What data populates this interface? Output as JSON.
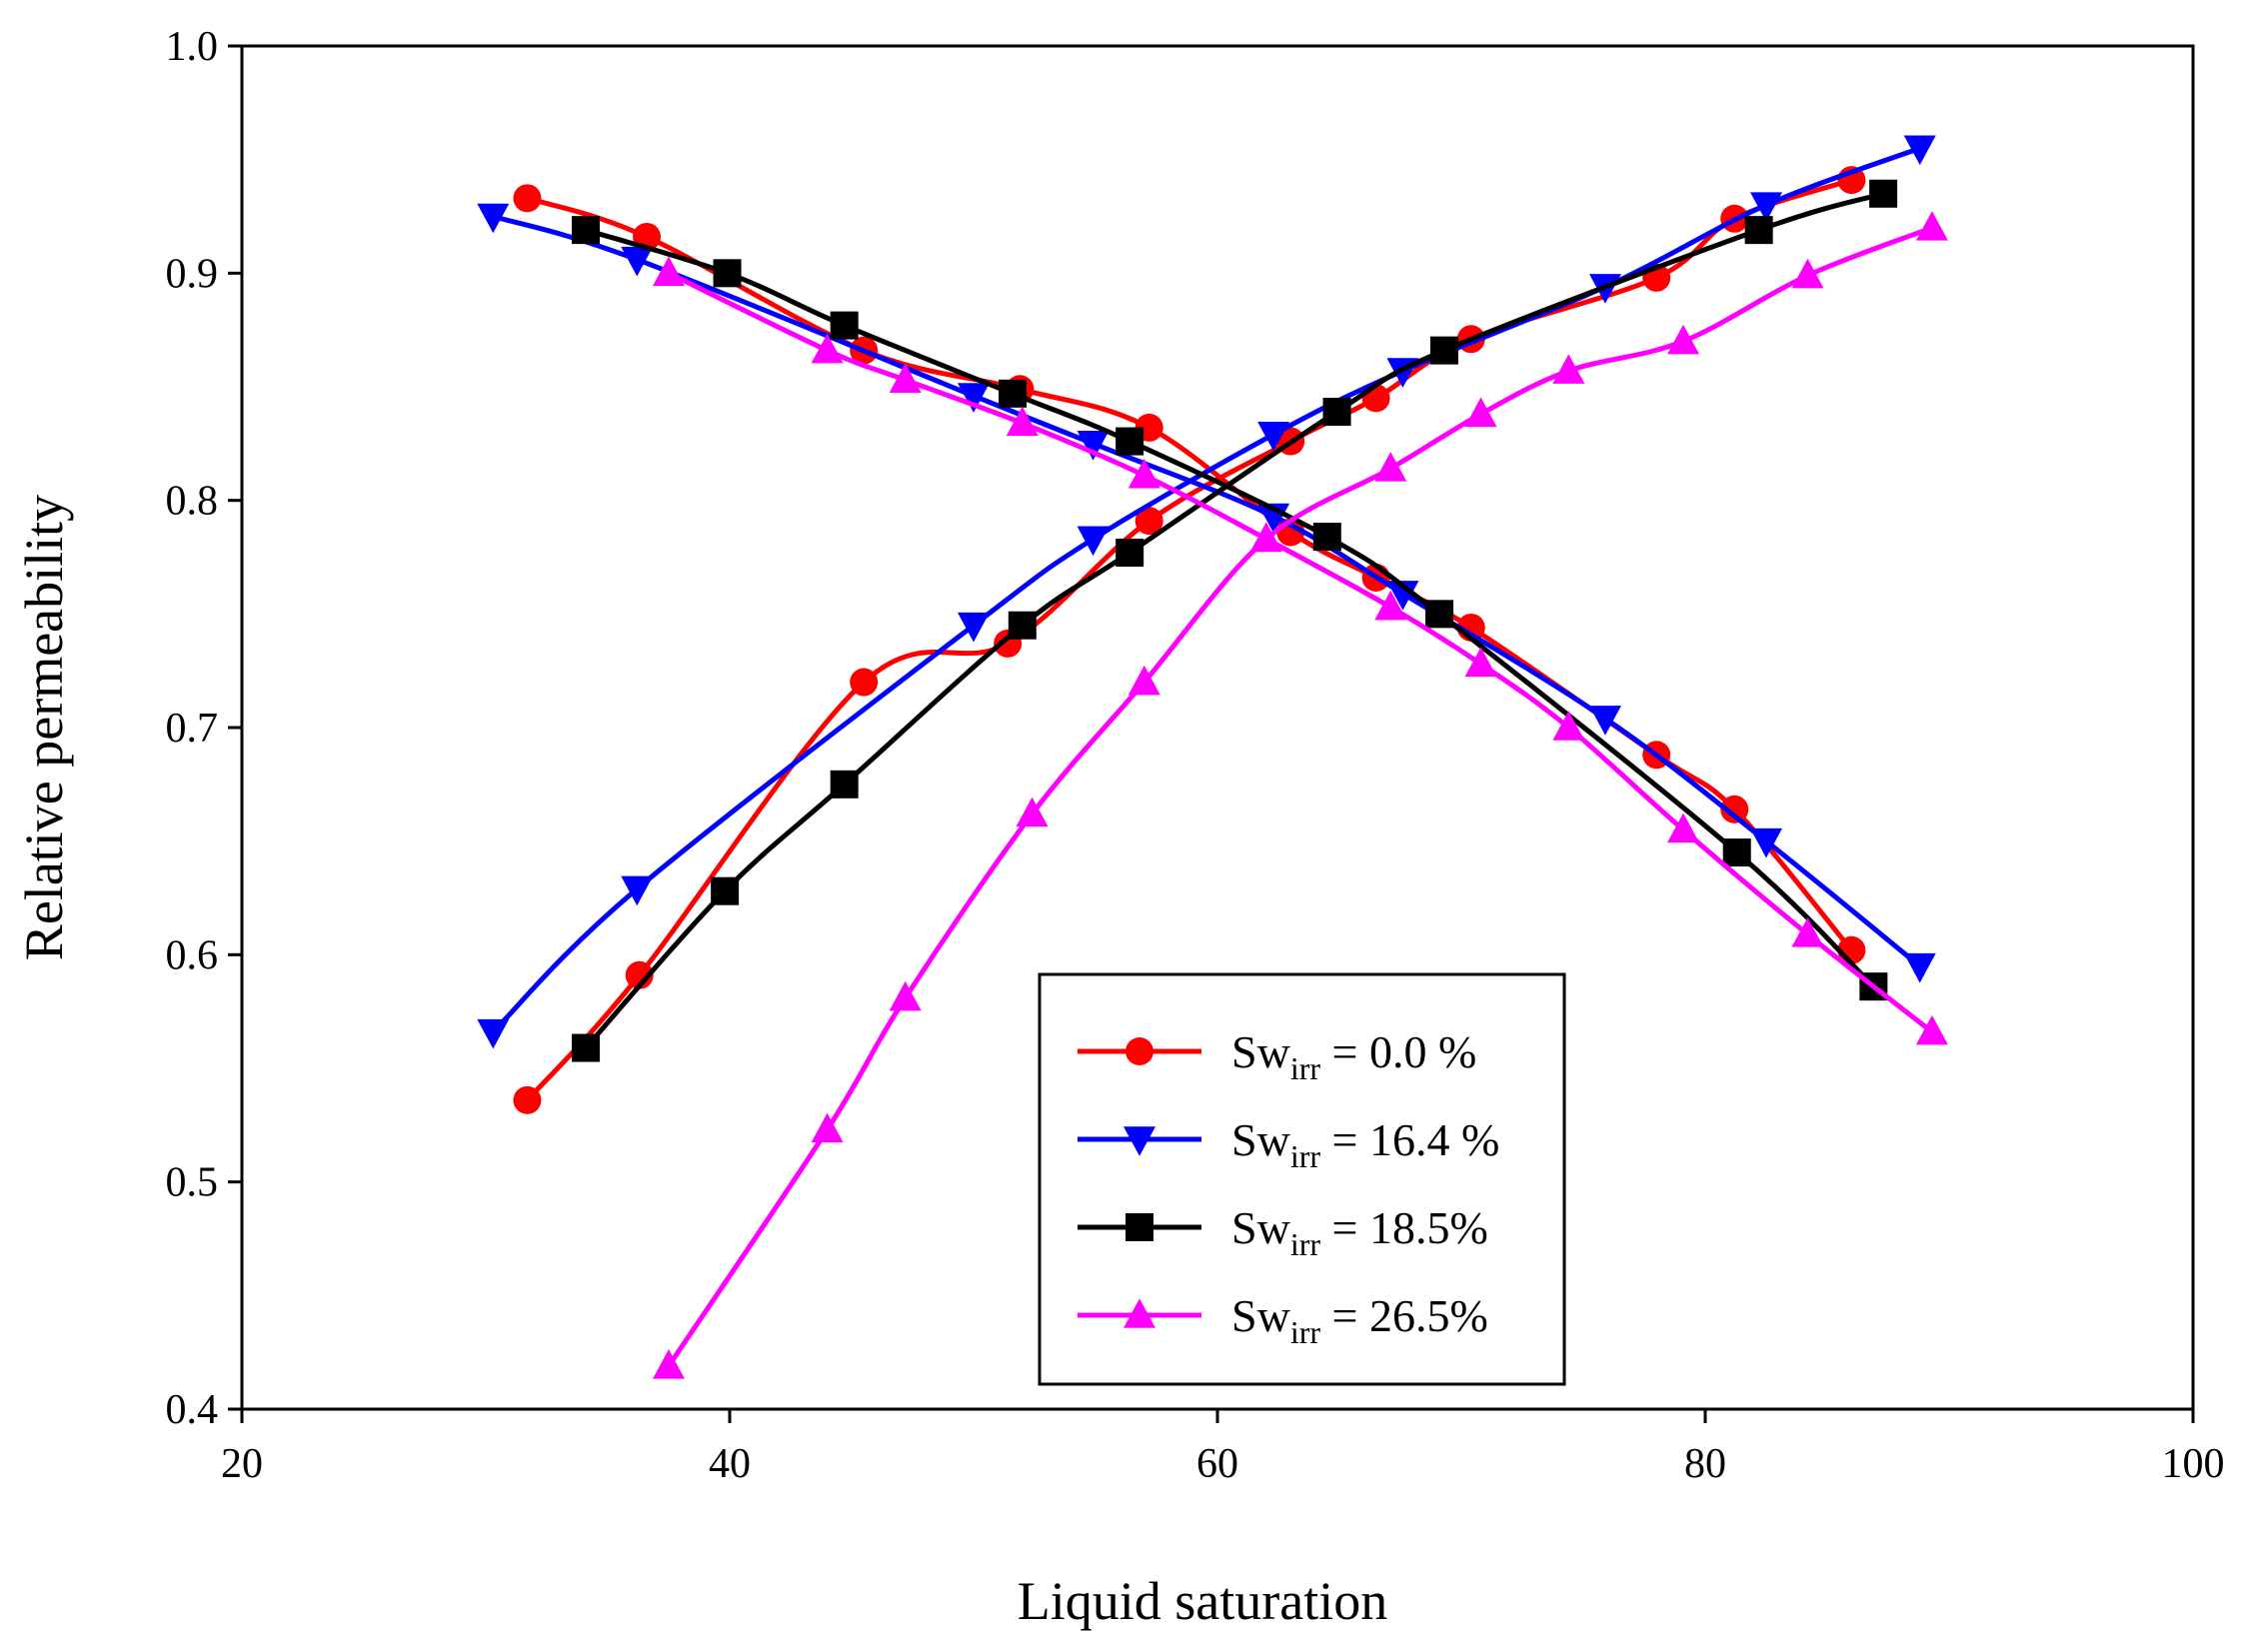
{
  "chart_data": {
    "type": "line",
    "title": "",
    "xlabel": "Liquid saturation",
    "ylabel": "Relative permeability",
    "xlim": [
      20,
      100
    ],
    "ylim": [
      0.4,
      1.0
    ],
    "xticks": [
      20,
      40,
      60,
      80,
      100
    ],
    "xtick_labels": [
      "20",
      "40",
      "60",
      "80",
      "100"
    ],
    "yticks": [
      0.4,
      0.5,
      0.6,
      0.7,
      0.8,
      0.9,
      1.0
    ],
    "ytick_labels": [
      "0.4",
      "0.5",
      "0.6",
      "0.7",
      "0.8",
      "0.9",
      "1.0"
    ],
    "grid": false,
    "legend_position": "lower-center",
    "series": [
      {
        "name": "Sw_irr = 0.0 %",
        "label_main": "Sw",
        "label_sub": "irr",
        "label_rest": " = 0.0 %",
        "color": "#ff0000",
        "marker": "circle",
        "curves": [
          {
            "x": [
              31.7,
              36.3,
              45.5,
              51.4,
              57.2,
              63.0,
              66.5,
              70.4,
              78.0,
              81.2,
              86.0
            ],
            "y": [
              0.536,
              0.591,
              0.72,
              0.737,
              0.791,
              0.826,
              0.845,
              0.871,
              0.898,
              0.924,
              0.941
            ]
          },
          {
            "x": [
              31.7,
              36.6,
              45.5,
              51.9,
              57.2,
              63.0,
              66.5,
              70.4,
              78.0,
              81.2,
              86.0
            ],
            "y": [
              0.933,
              0.916,
              0.866,
              0.849,
              0.832,
              0.786,
              0.766,
              0.744,
              0.688,
              0.664,
              0.602
            ]
          }
        ]
      },
      {
        "name": "Sw_irr = 16.4 %",
        "label_main": "Sw",
        "label_sub": "irr",
        "label_rest": " = 16.4 %",
        "color": "#0000ff",
        "marker": "triangle-down",
        "curves": [
          {
            "x": [
              30.3,
              36.2,
              50.0,
              54.9,
              62.3,
              67.6,
              75.9,
              82.5,
              88.8
            ],
            "y": [
              0.566,
              0.629,
              0.745,
              0.783,
              0.829,
              0.857,
              0.894,
              0.93,
              0.955
            ]
          },
          {
            "x": [
              30.3,
              36.2,
              50.0,
              54.9,
              62.3,
              67.6,
              75.9,
              82.5,
              88.8
            ],
            "y": [
              0.925,
              0.906,
              0.846,
              0.825,
              0.793,
              0.759,
              0.704,
              0.65,
              0.595
            ]
          }
        ]
      },
      {
        "name": "Sw_irr = 18.5%",
        "label_main": "Sw",
        "label_sub": "irr",
        "label_rest": " = 18.5%",
        "color": "#000000",
        "marker": "square",
        "curves": [
          {
            "x": [
              34.1,
              39.8,
              44.7,
              52.0,
              56.4,
              64.9,
              69.3,
              82.2,
              87.3
            ],
            "y": [
              0.559,
              0.628,
              0.675,
              0.745,
              0.777,
              0.839,
              0.866,
              0.919,
              0.935
            ]
          },
          {
            "x": [
              34.1,
              39.9,
              44.7,
              51.6,
              56.4,
              64.5,
              69.1,
              81.3,
              86.9
            ],
            "y": [
              0.919,
              0.9,
              0.877,
              0.847,
              0.826,
              0.784,
              0.75,
              0.645,
              0.586
            ]
          }
        ]
      },
      {
        "name": "Sw_irr = 26.5%",
        "label_main": "Sw",
        "label_sub": "irr",
        "label_rest": " = 26.5%",
        "color": "#ff00ff",
        "marker": "triangle-up",
        "curves": [
          {
            "x": [
              37.5,
              44.0,
              47.2,
              52.4,
              57.0,
              62.0,
              67.1,
              70.8,
              74.4,
              79.1,
              84.2,
              89.3
            ],
            "y": [
              0.419,
              0.523,
              0.581,
              0.662,
              0.72,
              0.783,
              0.814,
              0.838,
              0.857,
              0.87,
              0.899,
              0.92
            ]
          },
          {
            "x": [
              37.5,
              44.0,
              47.2,
              52.0,
              57.0,
              62.0,
              67.1,
              70.8,
              74.4,
              79.1,
              84.2,
              89.3
            ],
            "y": [
              0.9,
              0.866,
              0.853,
              0.834,
              0.811,
              0.783,
              0.753,
              0.728,
              0.7,
              0.655,
              0.609,
              0.566
            ]
          }
        ]
      }
    ]
  }
}
